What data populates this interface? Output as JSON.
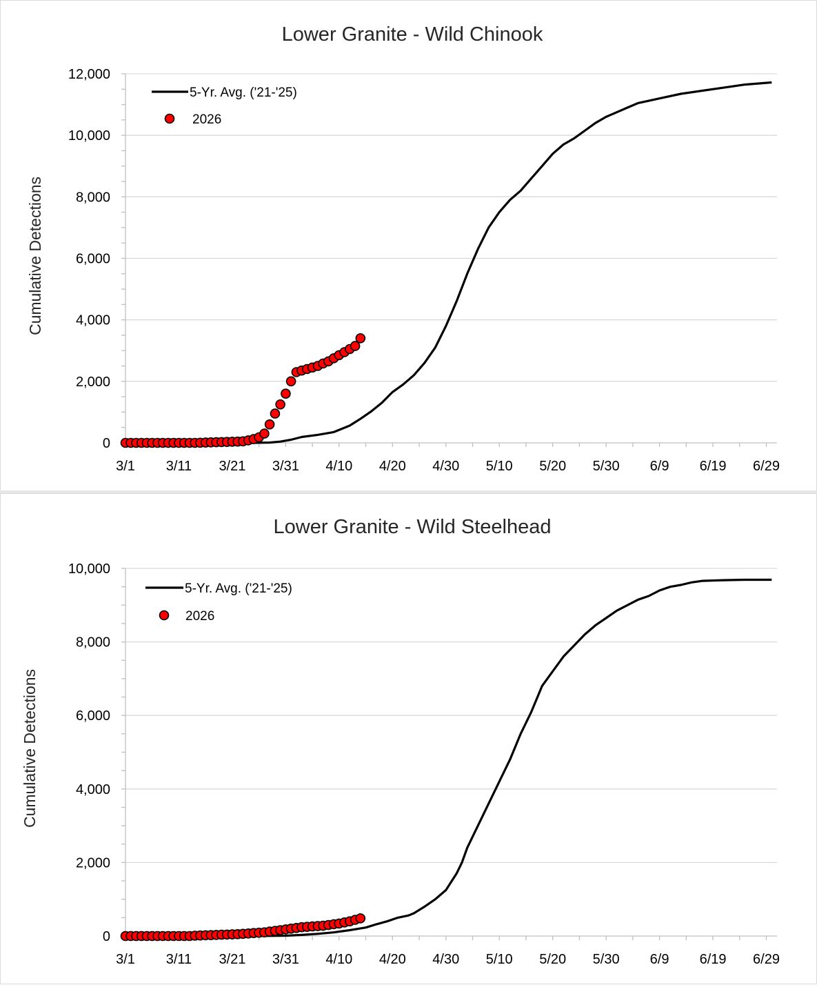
{
  "charts": [
    {
      "title": "Lower Granite - Wild Chinook",
      "ylabel": "Cumulative Detections",
      "legend": [
        "5-Yr. Avg. ('21-'25)",
        "2026"
      ],
      "ytick_labels": [
        "0",
        "2,000",
        "4,000",
        "6,000",
        "8,000",
        "10,000",
        "12,000"
      ],
      "xtick_labels": [
        "3/1",
        "3/11",
        "3/21",
        "3/31",
        "4/10",
        "4/20",
        "4/30",
        "5/10",
        "5/20",
        "5/30",
        "6/9",
        "6/19",
        "6/29"
      ]
    },
    {
      "title": "Lower Granite - Wild Steelhead",
      "ylabel": "Cumulative Detections",
      "legend": [
        "5-Yr. Avg. ('21-'25)",
        "2026"
      ],
      "ytick_labels": [
        "0",
        "2,000",
        "4,000",
        "6,000",
        "8,000",
        "10,000"
      ],
      "xtick_labels": [
        "3/1",
        "3/11",
        "3/21",
        "3/31",
        "4/10",
        "4/20",
        "4/30",
        "5/10",
        "5/20",
        "5/30",
        "6/9",
        "6/19",
        "6/29"
      ]
    }
  ],
  "chart_data": [
    {
      "type": "line",
      "title": "Lower Granite - Wild Chinook",
      "xlabel": "",
      "ylabel": "Cumulative Detections",
      "ylim": [
        0,
        12000
      ],
      "xlim": [
        "3/1",
        "7/1"
      ],
      "grid": true,
      "legend_position": "top-left",
      "series": [
        {
          "name": "5-Yr. Avg. ('21-'25)",
          "style": "line",
          "color": "#000000",
          "points": [
            [
              "3/1",
              0
            ],
            [
              "3/20",
              0
            ],
            [
              "3/25",
              0
            ],
            [
              "3/28",
              10
            ],
            [
              "3/30",
              40
            ],
            [
              "4/1",
              100
            ],
            [
              "4/3",
              190
            ],
            [
              "4/6",
              260
            ],
            [
              "4/9",
              350
            ],
            [
              "4/12",
              560
            ],
            [
              "4/14",
              780
            ],
            [
              "4/16",
              1020
            ],
            [
              "4/18",
              1300
            ],
            [
              "4/20",
              1650
            ],
            [
              "4/22",
              1900
            ],
            [
              "4/24",
              2200
            ],
            [
              "4/26",
              2600
            ],
            [
              "4/28",
              3100
            ],
            [
              "4/30",
              3800
            ],
            [
              "5/2",
              4600
            ],
            [
              "5/4",
              5500
            ],
            [
              "5/6",
              6300
            ],
            [
              "5/8",
              7000
            ],
            [
              "5/10",
              7500
            ],
            [
              "5/12",
              7900
            ],
            [
              "5/14",
              8200
            ],
            [
              "5/16",
              8600
            ],
            [
              "5/18",
              9000
            ],
            [
              "5/20",
              9400
            ],
            [
              "5/22",
              9700
            ],
            [
              "5/24",
              9900
            ],
            [
              "5/26",
              10150
            ],
            [
              "5/28",
              10400
            ],
            [
              "5/30",
              10600
            ],
            [
              "6/1",
              10750
            ],
            [
              "6/3",
              10900
            ],
            [
              "6/5",
              11050
            ],
            [
              "6/9",
              11200
            ],
            [
              "6/13",
              11350
            ],
            [
              "6/17",
              11450
            ],
            [
              "6/21",
              11550
            ],
            [
              "6/25",
              11650
            ],
            [
              "6/30",
              11720
            ]
          ]
        },
        {
          "name": "2026",
          "style": "markers",
          "color": "#ff0000",
          "points": [
            [
              "3/1",
              0
            ],
            [
              "3/2",
              0
            ],
            [
              "3/3",
              0
            ],
            [
              "3/4",
              0
            ],
            [
              "3/5",
              0
            ],
            [
              "3/6",
              0
            ],
            [
              "3/7",
              0
            ],
            [
              "3/8",
              0
            ],
            [
              "3/9",
              0
            ],
            [
              "3/10",
              0
            ],
            [
              "3/11",
              0
            ],
            [
              "3/12",
              0
            ],
            [
              "3/13",
              0
            ],
            [
              "3/14",
              0
            ],
            [
              "3/15",
              5
            ],
            [
              "3/16",
              10
            ],
            [
              "3/17",
              15
            ],
            [
              "3/18",
              20
            ],
            [
              "3/19",
              25
            ],
            [
              "3/20",
              30
            ],
            [
              "3/21",
              35
            ],
            [
              "3/22",
              40
            ],
            [
              "3/23",
              50
            ],
            [
              "3/24",
              80
            ],
            [
              "3/25",
              120
            ],
            [
              "3/26",
              180
            ],
            [
              "3/27",
              300
            ],
            [
              "3/28",
              600
            ],
            [
              "3/29",
              950
            ],
            [
              "3/30",
              1250
            ],
            [
              "3/31",
              1600
            ],
            [
              "4/1",
              2000
            ],
            [
              "4/2",
              2300
            ],
            [
              "4/3",
              2350
            ],
            [
              "4/4",
              2400
            ],
            [
              "4/5",
              2450
            ],
            [
              "4/6",
              2500
            ],
            [
              "4/7",
              2580
            ],
            [
              "4/8",
              2650
            ],
            [
              "4/9",
              2750
            ],
            [
              "4/10",
              2850
            ],
            [
              "4/11",
              2950
            ],
            [
              "4/12",
              3050
            ],
            [
              "4/13",
              3150
            ],
            [
              "4/14",
              3400
            ]
          ]
        }
      ]
    },
    {
      "type": "line",
      "title": "Lower Granite - Wild Steelhead",
      "xlabel": "",
      "ylabel": "Cumulative Detections",
      "ylim": [
        0,
        10000
      ],
      "xlim": [
        "3/1",
        "7/1"
      ],
      "grid": true,
      "legend_position": "top-left",
      "series": [
        {
          "name": "5-Yr. Avg. ('21-'25)",
          "style": "line",
          "color": "#000000",
          "points": [
            [
              "3/1",
              0
            ],
            [
              "3/25",
              0
            ],
            [
              "3/31",
              10
            ],
            [
              "4/3",
              30
            ],
            [
              "4/6",
              60
            ],
            [
              "4/9",
              100
            ],
            [
              "4/12",
              160
            ],
            [
              "4/15",
              230
            ],
            [
              "4/17",
              320
            ],
            [
              "4/19",
              400
            ],
            [
              "4/21",
              500
            ],
            [
              "4/23",
              560
            ],
            [
              "4/24",
              620
            ],
            [
              "4/26",
              800
            ],
            [
              "4/28",
              1000
            ],
            [
              "4/30",
              1250
            ],
            [
              "5/2",
              1700
            ],
            [
              "5/3",
              2000
            ],
            [
              "5/4",
              2400
            ],
            [
              "5/6",
              3000
            ],
            [
              "5/8",
              3600
            ],
            [
              "5/10",
              4200
            ],
            [
              "5/12",
              4800
            ],
            [
              "5/14",
              5500
            ],
            [
              "5/16",
              6100
            ],
            [
              "5/18",
              6800
            ],
            [
              "5/20",
              7200
            ],
            [
              "5/22",
              7600
            ],
            [
              "5/24",
              7900
            ],
            [
              "5/26",
              8200
            ],
            [
              "5/28",
              8450
            ],
            [
              "5/30",
              8650
            ],
            [
              "6/1",
              8850
            ],
            [
              "6/3",
              9000
            ],
            [
              "6/5",
              9150
            ],
            [
              "6/7",
              9250
            ],
            [
              "6/9",
              9400
            ],
            [
              "6/11",
              9500
            ],
            [
              "6/13",
              9550
            ],
            [
              "6/15",
              9620
            ],
            [
              "6/17",
              9660
            ],
            [
              "6/21",
              9680
            ],
            [
              "6/25",
              9690
            ],
            [
              "6/30",
              9690
            ]
          ]
        },
        {
          "name": "2026",
          "style": "markers",
          "color": "#ff0000",
          "points": [
            [
              "3/1",
              0
            ],
            [
              "3/2",
              0
            ],
            [
              "3/3",
              0
            ],
            [
              "3/4",
              0
            ],
            [
              "3/5",
              0
            ],
            [
              "3/6",
              0
            ],
            [
              "3/7",
              0
            ],
            [
              "3/8",
              0
            ],
            [
              "3/9",
              0
            ],
            [
              "3/10",
              0
            ],
            [
              "3/11",
              0
            ],
            [
              "3/12",
              0
            ],
            [
              "3/13",
              0
            ],
            [
              "3/14",
              10
            ],
            [
              "3/15",
              15
            ],
            [
              "3/16",
              20
            ],
            [
              "3/17",
              25
            ],
            [
              "3/18",
              30
            ],
            [
              "3/19",
              35
            ],
            [
              "3/20",
              40
            ],
            [
              "3/21",
              45
            ],
            [
              "3/22",
              50
            ],
            [
              "3/23",
              60
            ],
            [
              "3/24",
              70
            ],
            [
              "3/25",
              80
            ],
            [
              "3/26",
              90
            ],
            [
              "3/27",
              100
            ],
            [
              "3/28",
              120
            ],
            [
              "3/29",
              140
            ],
            [
              "3/30",
              160
            ],
            [
              "3/31",
              180
            ],
            [
              "4/1",
              200
            ],
            [
              "4/2",
              220
            ],
            [
              "4/3",
              240
            ],
            [
              "4/4",
              250
            ],
            [
              "4/5",
              260
            ],
            [
              "4/6",
              270
            ],
            [
              "4/7",
              280
            ],
            [
              "4/8",
              300
            ],
            [
              "4/9",
              320
            ],
            [
              "4/10",
              340
            ],
            [
              "4/11",
              370
            ],
            [
              "4/12",
              400
            ],
            [
              "4/13",
              440
            ],
            [
              "4/14",
              480
            ]
          ]
        }
      ]
    }
  ]
}
